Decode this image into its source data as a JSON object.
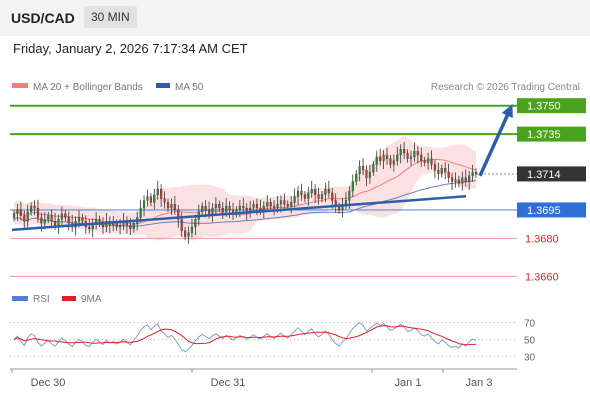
{
  "header": {
    "pair": "USD/CAD",
    "interval": "30 MIN"
  },
  "timestamp": "Friday, January 2, 2026 7:17:34 AM CET",
  "legend": {
    "ma20": "MA 20 + Bollinger Bands",
    "ma50": "MA 50",
    "ma20_color": "#f08080",
    "ma50_color": "#2d5ea8"
  },
  "credit": "Research © 2026 Trading Central",
  "levels": [
    {
      "value": 1.375,
      "label": "1.3750",
      "kind": "target",
      "color": "#4aa31c"
    },
    {
      "value": 1.3735,
      "label": "1.3735",
      "kind": "target",
      "color": "#4aa31c"
    },
    {
      "value": 1.3714,
      "label": "1.3714",
      "kind": "last",
      "color": "#333333"
    },
    {
      "value": 1.3695,
      "label": "1.3695",
      "kind": "pivot",
      "color": "#2d6fd6"
    },
    {
      "value": 1.368,
      "label": "1.3680",
      "kind": "support",
      "color": "#d22b2b"
    },
    {
      "value": 1.366,
      "label": "1.3660",
      "kind": "support",
      "color": "#d22b2b"
    }
  ],
  "rsi_legend": {
    "rsi": "RSI",
    "ma9": "9MA",
    "rsi_color": "#4d7fd6",
    "ma9_color": "#e02020"
  },
  "rsi_ticks": [
    "70",
    "50",
    "30"
  ],
  "x_labels": [
    "Dec 30",
    "Dec 31",
    "Jan 1",
    "Jan 3"
  ],
  "chart_data": {
    "type": "candlestick",
    "price_axis": "right",
    "ylim": [
      1.3657,
      1.3753
    ],
    "rsi_levels": [
      70,
      50,
      30
    ],
    "close": [
      1.3693,
      1.3695,
      1.3692,
      1.3689,
      1.3694,
      1.3697,
      1.3696,
      1.3691,
      1.3688,
      1.369,
      1.3692,
      1.3689,
      1.3687,
      1.369,
      1.3693,
      1.3691,
      1.3688,
      1.3686,
      1.3689,
      1.3691,
      1.3689,
      1.3686,
      1.3685,
      1.3688,
      1.369,
      1.3688,
      1.3686,
      1.3689,
      1.3687,
      1.3688,
      1.3686,
      1.3687,
      1.3689,
      1.3687,
      1.3685,
      1.3688,
      1.3691,
      1.3696,
      1.37,
      1.3702,
      1.3699,
      1.3703,
      1.3706,
      1.3701,
      1.3699,
      1.3696,
      1.3698,
      1.3695,
      1.369,
      1.3684,
      1.3681,
      1.3683,
      1.3686,
      1.369,
      1.3694,
      1.3697,
      1.3695,
      1.3693,
      1.3696,
      1.3698,
      1.3696,
      1.3694,
      1.3697,
      1.3695,
      1.3693,
      1.3695,
      1.3697,
      1.3696,
      1.3694,
      1.3696,
      1.3698,
      1.3696,
      1.3695,
      1.3697,
      1.3699,
      1.3697,
      1.3696,
      1.3698,
      1.37,
      1.3698,
      1.3697,
      1.3699,
      1.3702,
      1.3705,
      1.3703,
      1.3701,
      1.3704,
      1.3706,
      1.3703,
      1.3701,
      1.3703,
      1.3706,
      1.3704,
      1.37,
      1.3697,
      1.3695,
      1.3698,
      1.37,
      1.3705,
      1.371,
      1.3714,
      1.3718,
      1.3716,
      1.3712,
      1.3715,
      1.3719,
      1.3723,
      1.3721,
      1.3724,
      1.3722,
      1.3719,
      1.3721,
      1.3724,
      1.3727,
      1.3725,
      1.3722,
      1.3723,
      1.3726,
      1.3724,
      1.3721,
      1.372,
      1.3722,
      1.3719,
      1.3716,
      1.3714,
      1.3717,
      1.3715,
      1.3712,
      1.371,
      1.3711,
      1.3709,
      1.3712,
      1.371,
      1.3713,
      1.3715,
      1.3714
    ]
  }
}
